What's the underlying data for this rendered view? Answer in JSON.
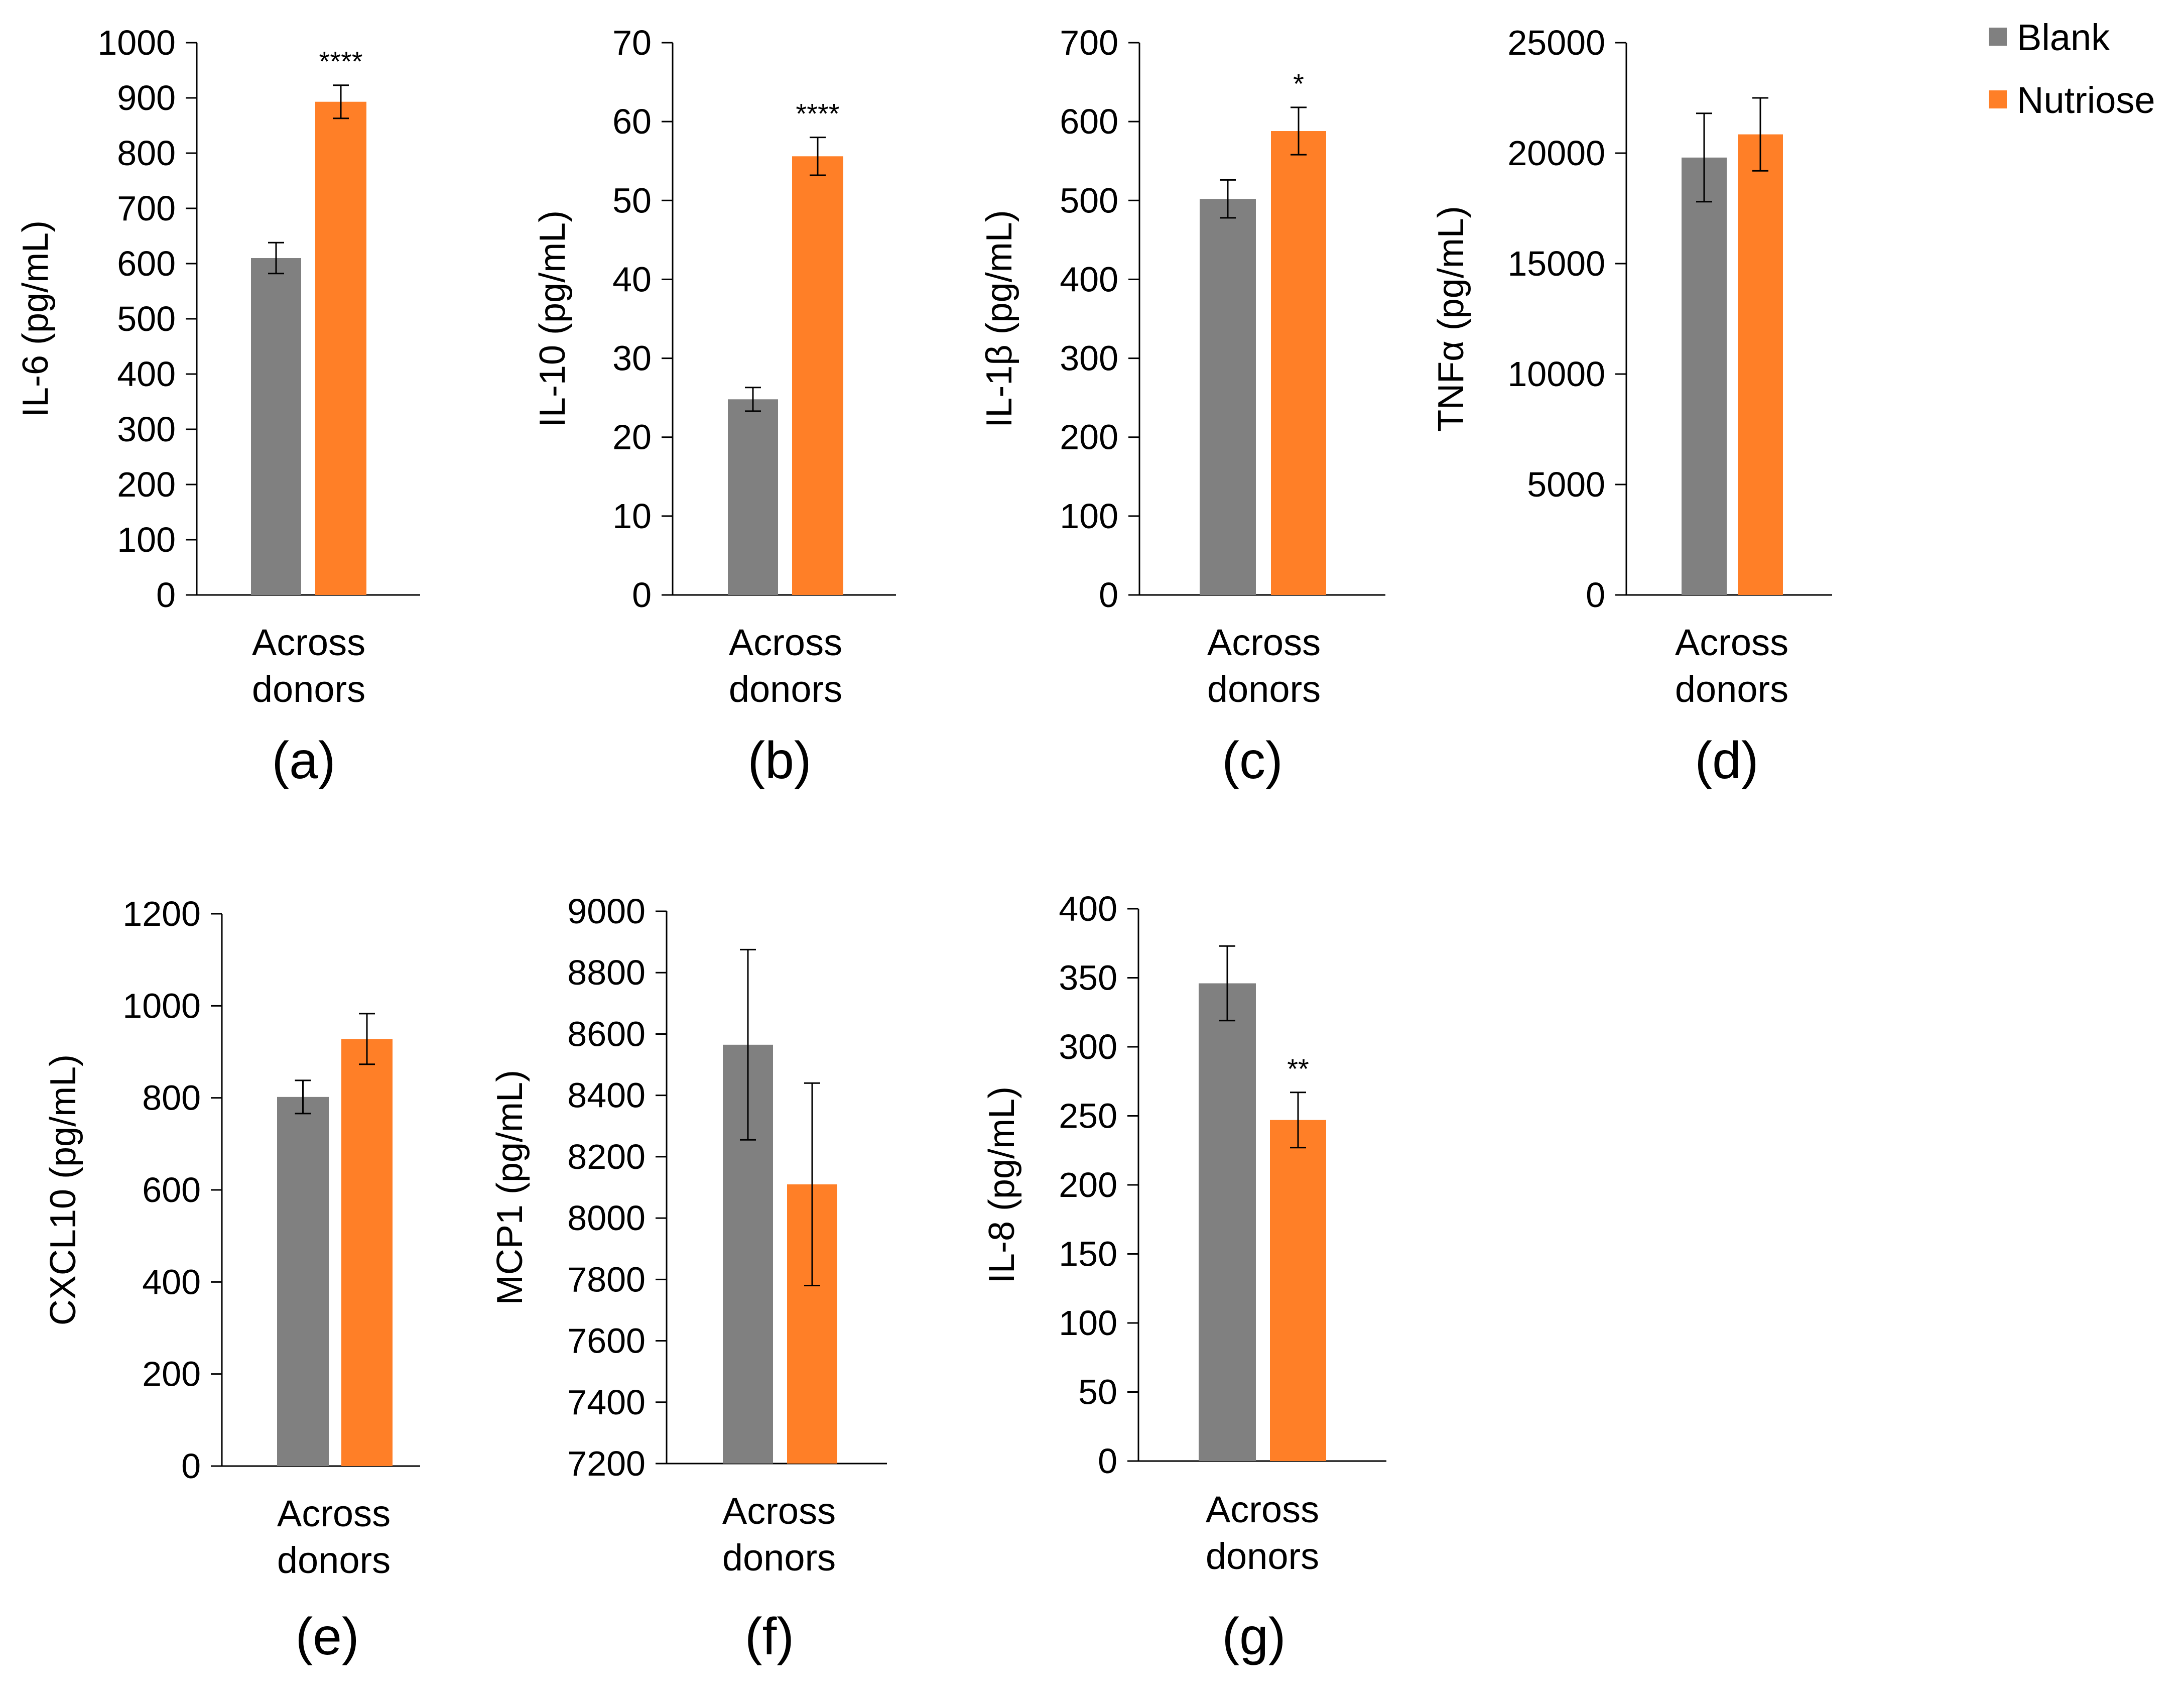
{
  "legend": {
    "items": [
      {
        "name": "Blank",
        "color": "#808080"
      },
      {
        "name": "Nutriose",
        "color": "#ff7f27"
      }
    ]
  },
  "chart_data": [
    {
      "type": "bar",
      "panel": "(a)",
      "ylabel": "IL-6 (pg/mL)",
      "categories": [
        "Across donors"
      ],
      "category_lines": [
        "Across",
        "donors"
      ],
      "ylim": [
        0,
        1000
      ],
      "ticks": [
        0,
        100,
        200,
        300,
        400,
        500,
        600,
        700,
        800,
        900,
        1000
      ],
      "series": [
        {
          "name": "Blank",
          "values": [
            610
          ],
          "errors": [
            28
          ]
        },
        {
          "name": "Nutriose",
          "values": [
            893
          ],
          "errors": [
            30
          ]
        }
      ],
      "significance": "****"
    },
    {
      "type": "bar",
      "panel": "(b)",
      "ylabel": "IL-10 (pg/mL)",
      "categories": [
        "Across donors"
      ],
      "category_lines": [
        "Across",
        "donors"
      ],
      "ylim": [
        0,
        70
      ],
      "ticks": [
        0,
        10,
        20,
        30,
        40,
        50,
        60,
        70
      ],
      "series": [
        {
          "name": "Blank",
          "values": [
            24.8
          ],
          "errors": [
            1.5
          ]
        },
        {
          "name": "Nutriose",
          "values": [
            55.6
          ],
          "errors": [
            2.4
          ]
        }
      ],
      "significance": "****"
    },
    {
      "type": "bar",
      "panel": "(c)",
      "ylabel": "IL-1β (pg/mL)",
      "categories": [
        "Across donors"
      ],
      "category_lines": [
        "Across",
        "donors"
      ],
      "ylim": [
        0,
        700
      ],
      "ticks": [
        0,
        100,
        200,
        300,
        400,
        500,
        600,
        700
      ],
      "series": [
        {
          "name": "Blank",
          "values": [
            502
          ],
          "errors": [
            24
          ]
        },
        {
          "name": "Nutriose",
          "values": [
            588
          ],
          "errors": [
            30
          ]
        }
      ],
      "significance": "*"
    },
    {
      "type": "bar",
      "panel": "(d)",
      "ylabel": "TNFα (pg/mL)",
      "categories": [
        "Across donors"
      ],
      "category_lines": [
        "Across",
        "donors"
      ],
      "ylim": [
        0,
        25000
      ],
      "ticks": [
        0,
        5000,
        10000,
        15000,
        20000,
        25000
      ],
      "series": [
        {
          "name": "Blank",
          "values": [
            19800
          ],
          "errors": [
            2000
          ]
        },
        {
          "name": "Nutriose",
          "values": [
            20850
          ],
          "errors": [
            1650
          ]
        }
      ],
      "significance": ""
    },
    {
      "type": "bar",
      "panel": "(e)",
      "ylabel": "CXCL10 (pg/mL)",
      "categories": [
        "Across donors"
      ],
      "category_lines": [
        "Across",
        "donors"
      ],
      "ylim": [
        0,
        1200
      ],
      "ticks": [
        0,
        200,
        400,
        600,
        800,
        1000,
        1200
      ],
      "series": [
        {
          "name": "Blank",
          "values": [
            802
          ],
          "errors": [
            36
          ]
        },
        {
          "name": "Nutriose",
          "values": [
            928
          ],
          "errors": [
            55
          ]
        }
      ],
      "significance": ""
    },
    {
      "type": "bar",
      "panel": "(f)",
      "ylabel": "MCP1 (pg/mL)",
      "categories": [
        "Across donors"
      ],
      "category_lines": [
        "Across",
        "donors"
      ],
      "ylim": [
        7200,
        9000
      ],
      "ticks": [
        7200,
        7400,
        7600,
        7800,
        8000,
        8200,
        8400,
        8600,
        8800,
        9000
      ],
      "series": [
        {
          "name": "Blank",
          "values": [
            8565
          ],
          "errors": [
            310
          ]
        },
        {
          "name": "Nutriose",
          "values": [
            8110
          ],
          "errors": [
            330
          ]
        }
      ],
      "significance": ""
    },
    {
      "type": "bar",
      "panel": "(g)",
      "ylabel": "IL-8 (pg/mL)",
      "categories": [
        "Across donors"
      ],
      "category_lines": [
        "Across",
        "donors"
      ],
      "ylim": [
        0,
        400
      ],
      "ticks": [
        0,
        50,
        100,
        150,
        200,
        250,
        300,
        350,
        400
      ],
      "series": [
        {
          "name": "Blank",
          "values": [
            346
          ],
          "errors": [
            27
          ]
        },
        {
          "name": "Nutriose",
          "values": [
            247
          ],
          "errors": [
            20
          ]
        }
      ],
      "significance": "**"
    }
  ]
}
